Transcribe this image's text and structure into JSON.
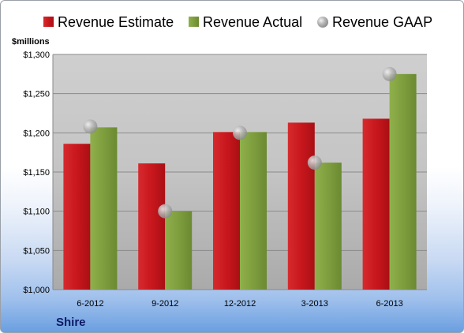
{
  "colors": {
    "estimate": "#c8171d",
    "actual": "#7e9e3e",
    "gaap": "#9a9a9a"
  },
  "chart_data": {
    "type": "bar",
    "categories": [
      "6-2012",
      "9-2012",
      "12-2012",
      "3-2013",
      "6-2013"
    ],
    "series": [
      {
        "name": "Revenue Estimate",
        "type": "bar",
        "values": [
          1186,
          1161,
          1201,
          1213,
          1218
        ]
      },
      {
        "name": "Revenue Actual",
        "type": "bar",
        "values": [
          1207,
          1100,
          1201,
          1162,
          1275
        ]
      },
      {
        "name": "Revenue GAAP",
        "type": "scatter",
        "values": [
          1208,
          1100,
          1200,
          1162,
          1275
        ]
      }
    ],
    "ylabel": "$millions",
    "ylim": [
      1000,
      1300
    ],
    "yticks": [
      1000,
      1050,
      1100,
      1150,
      1200,
      1250,
      1300
    ],
    "ytick_labels": [
      "$1,000",
      "$1,050",
      "$1,100",
      "$1,150",
      "$1,200",
      "$1,250",
      "$1,300"
    ],
    "grid": true,
    "legend_position": "top",
    "company": "Shire"
  }
}
